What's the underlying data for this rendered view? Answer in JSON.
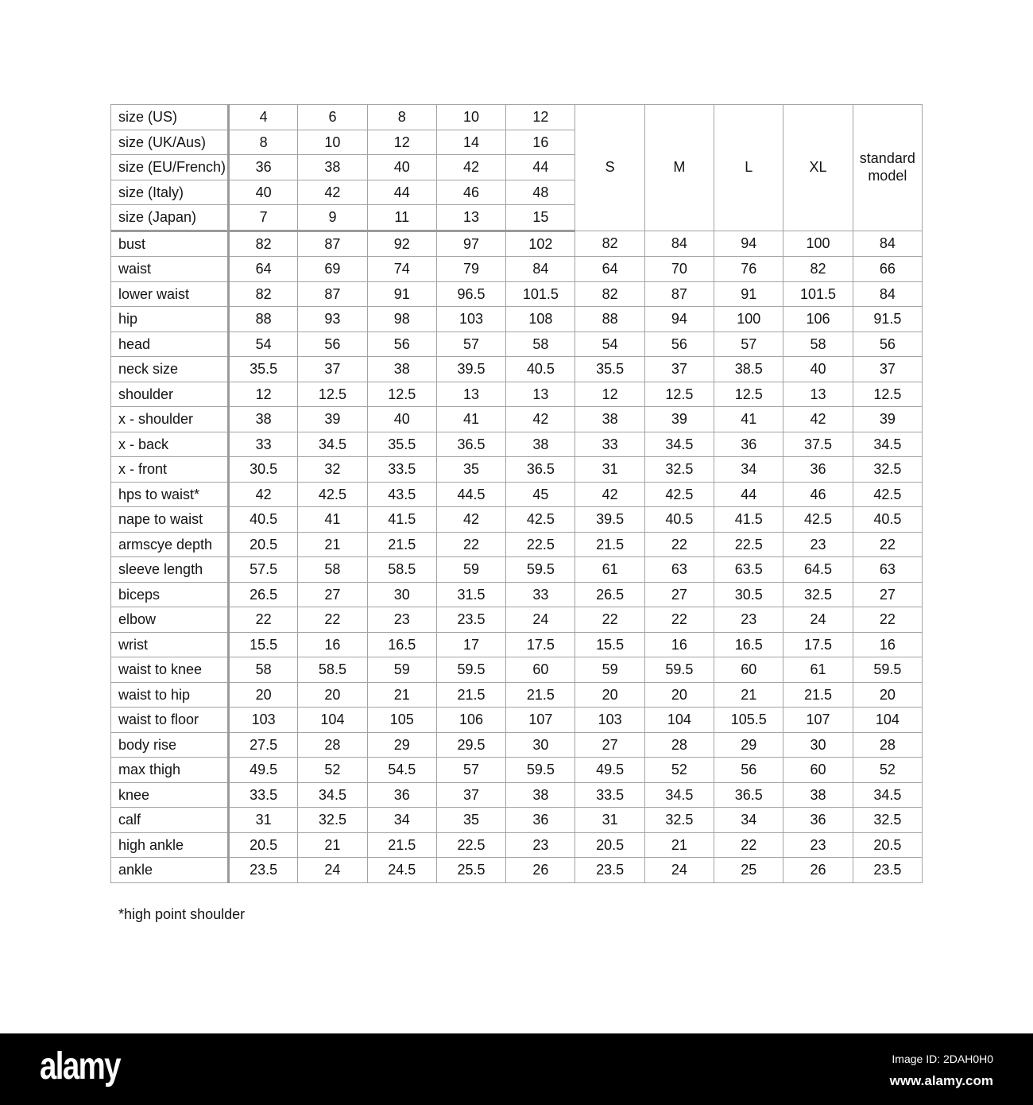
{
  "header": {
    "labels": [
      "size (US)",
      "size (UK/Aus)",
      "size (EU/French)",
      "size (Italy)",
      "size (Japan)"
    ],
    "numeric": [
      [
        "4",
        "6",
        "8",
        "10",
        "12"
      ],
      [
        "8",
        "10",
        "12",
        "14",
        "16"
      ],
      [
        "36",
        "38",
        "40",
        "42",
        "44"
      ],
      [
        "40",
        "42",
        "44",
        "46",
        "48"
      ],
      [
        "7",
        "9",
        "11",
        "13",
        "15"
      ]
    ],
    "letters": [
      "S",
      "M",
      "L",
      "XL",
      "standard model"
    ]
  },
  "rows": [
    {
      "label": "bust",
      "values": [
        "82",
        "87",
        "92",
        "97",
        "102",
        "82",
        "84",
        "94",
        "100",
        "84"
      ]
    },
    {
      "label": "waist",
      "values": [
        "64",
        "69",
        "74",
        "79",
        "84",
        "64",
        "70",
        "76",
        "82",
        "66"
      ]
    },
    {
      "label": "lower waist",
      "values": [
        "82",
        "87",
        "91",
        "96.5",
        "101.5",
        "82",
        "87",
        "91",
        "101.5",
        "84"
      ]
    },
    {
      "label": "hip",
      "values": [
        "88",
        "93",
        "98",
        "103",
        "108",
        "88",
        "94",
        "100",
        "106",
        "91.5"
      ]
    },
    {
      "label": "head",
      "values": [
        "54",
        "56",
        "56",
        "57",
        "58",
        "54",
        "56",
        "57",
        "58",
        "56"
      ]
    },
    {
      "label": "neck size",
      "values": [
        "35.5",
        "37",
        "38",
        "39.5",
        "40.5",
        "35.5",
        "37",
        "38.5",
        "40",
        "37"
      ]
    },
    {
      "label": "shoulder",
      "values": [
        "12",
        "12.5",
        "12.5",
        "13",
        "13",
        "12",
        "12.5",
        "12.5",
        "13",
        "12.5"
      ]
    },
    {
      "label": "x - shoulder",
      "values": [
        "38",
        "39",
        "40",
        "41",
        "42",
        "38",
        "39",
        "41",
        "42",
        "39"
      ]
    },
    {
      "label": "x - back",
      "values": [
        "33",
        "34.5",
        "35.5",
        "36.5",
        "38",
        "33",
        "34.5",
        "36",
        "37.5",
        "34.5"
      ]
    },
    {
      "label": "x - front",
      "values": [
        "30.5",
        "32",
        "33.5",
        "35",
        "36.5",
        "31",
        "32.5",
        "34",
        "36",
        "32.5"
      ]
    },
    {
      "label": "hps to waist*",
      "values": [
        "42",
        "42.5",
        "43.5",
        "44.5",
        "45",
        "42",
        "42.5",
        "44",
        "46",
        "42.5"
      ]
    },
    {
      "label": "nape to waist",
      "values": [
        "40.5",
        "41",
        "41.5",
        "42",
        "42.5",
        "39.5",
        "40.5",
        "41.5",
        "42.5",
        "40.5"
      ]
    },
    {
      "label": "armscye depth",
      "values": [
        "20.5",
        "21",
        "21.5",
        "22",
        "22.5",
        "21.5",
        "22",
        "22.5",
        "23",
        "22"
      ]
    },
    {
      "label": "sleeve length",
      "values": [
        "57.5",
        "58",
        "58.5",
        "59",
        "59.5",
        "61",
        "63",
        "63.5",
        "64.5",
        "63"
      ]
    },
    {
      "label": "biceps",
      "values": [
        "26.5",
        "27",
        "30",
        "31.5",
        "33",
        "26.5",
        "27",
        "30.5",
        "32.5",
        "27"
      ]
    },
    {
      "label": "elbow",
      "values": [
        "22",
        "22",
        "23",
        "23.5",
        "24",
        "22",
        "22",
        "23",
        "24",
        "22"
      ]
    },
    {
      "label": "wrist",
      "values": [
        "15.5",
        "16",
        "16.5",
        "17",
        "17.5",
        "15.5",
        "16",
        "16.5",
        "17.5",
        "16"
      ]
    },
    {
      "label": "waist to knee",
      "values": [
        "58",
        "58.5",
        "59",
        "59.5",
        "60",
        "59",
        "59.5",
        "60",
        "61",
        "59.5"
      ]
    },
    {
      "label": "waist to hip",
      "values": [
        "20",
        "20",
        "21",
        "21.5",
        "21.5",
        "20",
        "20",
        "21",
        "21.5",
        "20"
      ]
    },
    {
      "label": "waist to floor",
      "values": [
        "103",
        "104",
        "105",
        "106",
        "107",
        "103",
        "104",
        "105.5",
        "107",
        "104"
      ]
    },
    {
      "label": "body rise",
      "values": [
        "27.5",
        "28",
        "29",
        "29.5",
        "30",
        "27",
        "28",
        "29",
        "30",
        "28"
      ]
    },
    {
      "label": "max thigh",
      "values": [
        "49.5",
        "52",
        "54.5",
        "57",
        "59.5",
        "49.5",
        "52",
        "56",
        "60",
        "52"
      ]
    },
    {
      "label": "knee",
      "values": [
        "33.5",
        "34.5",
        "36",
        "37",
        "38",
        "33.5",
        "34.5",
        "36.5",
        "38",
        "34.5"
      ]
    },
    {
      "label": "calf",
      "values": [
        "31",
        "32.5",
        "34",
        "35",
        "36",
        "31",
        "32.5",
        "34",
        "36",
        "32.5"
      ]
    },
    {
      "label": "high ankle",
      "values": [
        "20.5",
        "21",
        "21.5",
        "22.5",
        "23",
        "20.5",
        "21",
        "22",
        "23",
        "20.5"
      ]
    },
    {
      "label": "ankle",
      "values": [
        "23.5",
        "24",
        "24.5",
        "25.5",
        "26",
        "23.5",
        "24",
        "25",
        "26",
        "23.5"
      ]
    }
  ],
  "footnote": "*high point shoulder",
  "watermark": {
    "logo": "alamy",
    "image_id": "Image ID: 2DAH0H0",
    "site": "www.alamy.com"
  }
}
